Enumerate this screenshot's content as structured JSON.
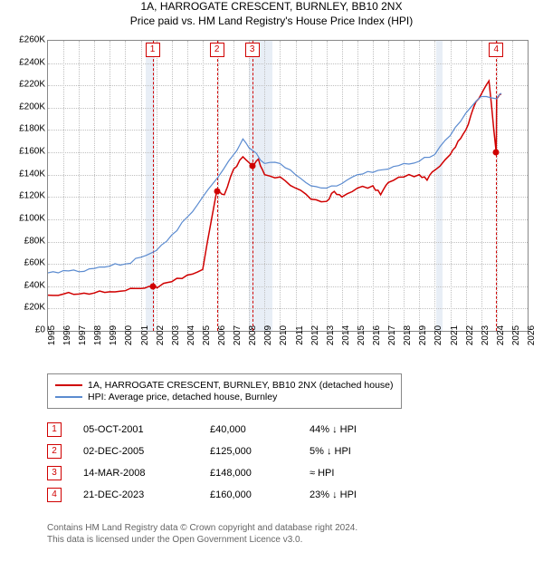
{
  "title": "1A, HARROGATE CRESCENT, BURNLEY, BB10 2NX",
  "subtitle": "Price paid vs. HM Land Registry's House Price Index (HPI)",
  "chart": {
    "type": "line",
    "background_color": "#ffffff",
    "grid_color": "#c0c0c0",
    "ylim": [
      0,
      260000
    ],
    "ytick_step": 20000,
    "ytick_labels": [
      "£0",
      "£20K",
      "£40K",
      "£60K",
      "£80K",
      "£100K",
      "£120K",
      "£140K",
      "£160K",
      "£180K",
      "£200K",
      "£220K",
      "£240K",
      "£260K"
    ],
    "xlim": [
      1995,
      2026
    ],
    "xtick_step": 1,
    "xtick_labels": [
      "1995",
      "1996",
      "1997",
      "1998",
      "1999",
      "2000",
      "2001",
      "2002",
      "2003",
      "2004",
      "2005",
      "2006",
      "2007",
      "2008",
      "2009",
      "2010",
      "2011",
      "2012",
      "2013",
      "2014",
      "2015",
      "2016",
      "2017",
      "2018",
      "2019",
      "2020",
      "2021",
      "2022",
      "2023",
      "2024",
      "2025",
      "2026"
    ],
    "recession_bands": [
      {
        "from": 2001.3,
        "to": 2001.9
      },
      {
        "from": 2008.0,
        "to": 2009.5
      },
      {
        "from": 2020.1,
        "to": 2020.5
      }
    ],
    "series": [
      {
        "name": "1A, HARROGATE CRESCENT, BURNLEY, BB10 2NX (detached house)",
        "color": "#d00000",
        "line_width": 1.5,
        "data": [
          [
            1995.0,
            32000
          ],
          [
            1996.0,
            33000
          ],
          [
            1997.0,
            33000
          ],
          [
            1998.0,
            34000
          ],
          [
            1999.0,
            35000
          ],
          [
            2000.0,
            36000
          ],
          [
            2001.0,
            38000
          ],
          [
            2001.76,
            40000
          ],
          [
            2002.2,
            40000
          ],
          [
            2003.0,
            44000
          ],
          [
            2004.0,
            50000
          ],
          [
            2005.0,
            55000
          ],
          [
            2005.9,
            125000
          ],
          [
            2006.4,
            122000
          ],
          [
            2007.0,
            145000
          ],
          [
            2007.6,
            156000
          ],
          [
            2008.2,
            148000
          ],
          [
            2008.6,
            154000
          ],
          [
            2009.0,
            140000
          ],
          [
            2010.0,
            138000
          ],
          [
            2011.0,
            128000
          ],
          [
            2012.0,
            118000
          ],
          [
            2013.0,
            116000
          ],
          [
            2013.5,
            125000
          ],
          [
            2014.0,
            120000
          ],
          [
            2015.0,
            128000
          ],
          [
            2016.0,
            130000
          ],
          [
            2016.5,
            122000
          ],
          [
            2017.0,
            133000
          ],
          [
            2018.0,
            138000
          ],
          [
            2019.0,
            140000
          ],
          [
            2019.5,
            135000
          ],
          [
            2020.0,
            144000
          ],
          [
            2021.0,
            158000
          ],
          [
            2021.5,
            170000
          ],
          [
            2022.0,
            180000
          ],
          [
            2022.5,
            200000
          ],
          [
            2023.0,
            212000
          ],
          [
            2023.5,
            224000
          ],
          [
            2023.97,
            160000
          ],
          [
            2024.0,
            208000
          ],
          [
            2024.3,
            212000
          ]
        ]
      },
      {
        "name": "HPI: Average price, detached house, Burnley",
        "color": "#5b8bd0",
        "line_width": 1.2,
        "data": [
          [
            1995.0,
            52000
          ],
          [
            1996.0,
            54000
          ],
          [
            1997.0,
            53000
          ],
          [
            1998.0,
            56000
          ],
          [
            1999.0,
            58000
          ],
          [
            2000.0,
            60000
          ],
          [
            2001.0,
            66000
          ],
          [
            2002.0,
            72000
          ],
          [
            2003.0,
            86000
          ],
          [
            2004.0,
            102000
          ],
          [
            2005.0,
            120000
          ],
          [
            2006.0,
            138000
          ],
          [
            2007.0,
            158000
          ],
          [
            2007.6,
            172000
          ],
          [
            2008.2,
            162000
          ],
          [
            2009.0,
            150000
          ],
          [
            2010.0,
            150000
          ],
          [
            2011.0,
            140000
          ],
          [
            2012.0,
            130000
          ],
          [
            2013.0,
            128000
          ],
          [
            2014.0,
            132000
          ],
          [
            2015.0,
            140000
          ],
          [
            2016.0,
            142000
          ],
          [
            2017.0,
            145000
          ],
          [
            2018.0,
            150000
          ],
          [
            2019.0,
            152000
          ],
          [
            2020.0,
            158000
          ],
          [
            2021.0,
            175000
          ],
          [
            2022.0,
            195000
          ],
          [
            2023.0,
            210000
          ],
          [
            2024.0,
            208000
          ],
          [
            2024.3,
            213000
          ]
        ]
      }
    ],
    "markers": [
      {
        "n": "1",
        "x": 2001.76,
        "y": 40000
      },
      {
        "n": "2",
        "x": 2005.92,
        "y": 125000
      },
      {
        "n": "3",
        "x": 2008.2,
        "y": 148000
      },
      {
        "n": "4",
        "x": 2023.97,
        "y": 160000
      }
    ]
  },
  "legend": {
    "rows": [
      {
        "color": "#d00000",
        "label": "1A, HARROGATE CRESCENT, BURNLEY, BB10 2NX (detached house)"
      },
      {
        "color": "#5b8bd0",
        "label": "HPI: Average price, detached house, Burnley"
      }
    ]
  },
  "sales": [
    {
      "n": "1",
      "date": "05-OCT-2001",
      "price": "£40,000",
      "diff": "44% ↓ HPI"
    },
    {
      "n": "2",
      "date": "02-DEC-2005",
      "price": "£125,000",
      "diff": "5% ↓ HPI"
    },
    {
      "n": "3",
      "date": "14-MAR-2008",
      "price": "£148,000",
      "diff": "≈ HPI"
    },
    {
      "n": "4",
      "date": "21-DEC-2023",
      "price": "£160,000",
      "diff": "23% ↓ HPI"
    }
  ],
  "footer": {
    "line1": "Contains HM Land Registry data © Crown copyright and database right 2024.",
    "line2": "This data is licensed under the Open Government Licence v3.0."
  }
}
